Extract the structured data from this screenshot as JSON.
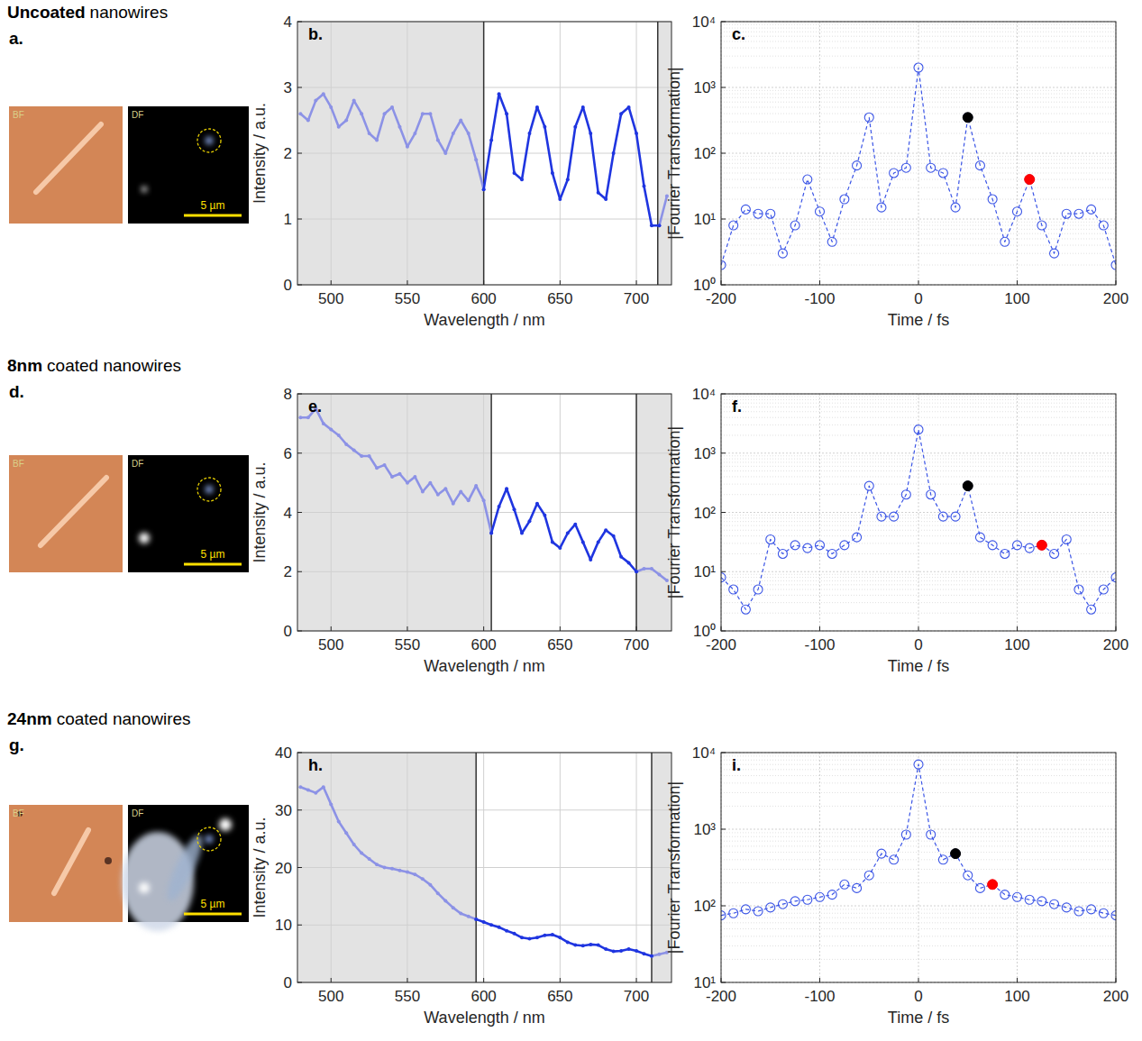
{
  "rows": [
    {
      "heading": [
        "Uncoated",
        "nanowires"
      ],
      "letter": "a.",
      "bf_label": "BF",
      "df_label": "DF",
      "scale_label": "5 µm"
    },
    {
      "heading": [
        "8nm",
        "coated nanowires"
      ],
      "letter": "d.",
      "bf_label": "BF",
      "df_label": "DF",
      "scale_label": "5 µm"
    },
    {
      "heading": [
        "24nm",
        "coated nanowires"
      ],
      "letter": "g.",
      "bf_label": "BF",
      "df_label": "DF",
      "scale_label": "5 µm"
    }
  ],
  "chart_data": [
    {
      "type": "line",
      "title": "b.",
      "x_label": "Wavelength / nm",
      "y_label": "Intensity / a.u.",
      "x": [
        480,
        485,
        490,
        495,
        500,
        505,
        510,
        515,
        520,
        525,
        530,
        535,
        540,
        545,
        550,
        555,
        560,
        565,
        570,
        575,
        580,
        585,
        590,
        595,
        600,
        605,
        610,
        615,
        620,
        625,
        630,
        635,
        640,
        645,
        650,
        655,
        660,
        665,
        670,
        675,
        680,
        685,
        690,
        695,
        700,
        705,
        710,
        715,
        720
      ],
      "xlim": [
        478,
        723
      ],
      "xticks": [
        500,
        550,
        600,
        650,
        700
      ],
      "ylim": [
        0,
        4
      ],
      "yticks": [
        0,
        1,
        2,
        3,
        4
      ],
      "grid": true,
      "window": [
        600,
        714
      ],
      "series": [
        {
          "color": "#8c92e6",
          "marker": "dot",
          "values": [
            2.6,
            2.5,
            2.8,
            2.9,
            2.7,
            2.4,
            2.5,
            2.8,
            2.6,
            2.3,
            2.2,
            2.6,
            2.7,
            2.4,
            2.1,
            2.3,
            2.6,
            2.6,
            2.2,
            2.0,
            2.3,
            2.5,
            2.3,
            1.9,
            1.45,
            null,
            null,
            null,
            null,
            null,
            null,
            null,
            null,
            null,
            null,
            null,
            null,
            null,
            null,
            null,
            null,
            null,
            null,
            null,
            null,
            null,
            null,
            0.9,
            1.35
          ]
        },
        {
          "color": "#1f35e0",
          "marker": "dot",
          "values": [
            null,
            null,
            null,
            null,
            null,
            null,
            null,
            null,
            null,
            null,
            null,
            null,
            null,
            null,
            null,
            null,
            null,
            null,
            null,
            null,
            null,
            null,
            null,
            null,
            1.45,
            2.2,
            2.9,
            2.6,
            1.7,
            1.6,
            2.3,
            2.7,
            2.4,
            1.7,
            1.3,
            1.6,
            2.4,
            2.7,
            2.3,
            1.4,
            1.3,
            2.0,
            2.6,
            2.7,
            2.3,
            1.5,
            0.9,
            0.9,
            null
          ]
        }
      ]
    },
    {
      "type": "line",
      "title": "c.",
      "x_label": "Time / fs",
      "y_label": "|Fourier Transformation|",
      "log": "y",
      "x": [
        -200,
        -187.5,
        -175,
        -162.5,
        -150,
        -137.5,
        -125,
        -112.5,
        -100,
        -87.5,
        -75,
        -62.5,
        -50,
        -37.5,
        -25,
        -12.5,
        0,
        12.5,
        25,
        37.5,
        50,
        62.5,
        75,
        87.5,
        100,
        112.5,
        125,
        137.5,
        150,
        162.5,
        175,
        187.5,
        200
      ],
      "xlim": [
        -200,
        200
      ],
      "xticks": [
        -200,
        -100,
        0,
        100,
        200
      ],
      "ylim": [
        1,
        10000
      ],
      "yticks": [
        {
          "value": 1,
          "label": "10⁰"
        },
        {
          "value": 10,
          "label": "10¹"
        },
        {
          "value": 100,
          "label": "10²"
        },
        {
          "value": 1000,
          "label": "10³"
        },
        {
          "value": 10000,
          "label": "10⁴"
        }
      ],
      "grid": true,
      "series": [
        {
          "color": "#3b55e6",
          "marker": "circle",
          "line_style": "dashed",
          "values": [
            2,
            8,
            14,
            12,
            12,
            3,
            8,
            40,
            13,
            4.5,
            20,
            65,
            350,
            15,
            50,
            60,
            2000,
            60,
            50,
            15,
            350,
            65,
            20,
            4.5,
            13,
            40,
            8,
            3,
            12,
            12,
            14,
            8,
            2
          ]
        },
        {
          "color": "#000000",
          "marker": "filled",
          "values": [
            null,
            null,
            null,
            null,
            null,
            null,
            null,
            null,
            null,
            null,
            null,
            null,
            null,
            null,
            null,
            null,
            null,
            null,
            null,
            null,
            350,
            null,
            null,
            null,
            null,
            null,
            null,
            null,
            null,
            null,
            null,
            null,
            null
          ]
        },
        {
          "color": "#ff0000",
          "marker": "filled",
          "values": [
            null,
            null,
            null,
            null,
            null,
            null,
            null,
            null,
            null,
            null,
            null,
            null,
            null,
            null,
            null,
            null,
            null,
            null,
            null,
            null,
            null,
            null,
            null,
            null,
            null,
            40,
            null,
            null,
            null,
            null,
            null,
            null,
            null
          ]
        }
      ]
    },
    {
      "type": "line",
      "title": "e.",
      "x_label": "Wavelength / nm",
      "y_label": "Intensity / a.u.",
      "x": [
        480,
        485,
        490,
        495,
        500,
        505,
        510,
        515,
        520,
        525,
        530,
        535,
        540,
        545,
        550,
        555,
        560,
        565,
        570,
        575,
        580,
        585,
        590,
        595,
        600,
        605,
        610,
        615,
        620,
        625,
        630,
        635,
        640,
        645,
        650,
        655,
        660,
        665,
        670,
        675,
        680,
        685,
        690,
        695,
        700,
        705,
        710,
        715,
        720
      ],
      "xlim": [
        478,
        723
      ],
      "xticks": [
        500,
        550,
        600,
        650,
        700
      ],
      "ylim": [
        0,
        8
      ],
      "yticks": [
        0,
        2,
        4,
        6,
        8
      ],
      "grid": true,
      "window": [
        605,
        700
      ],
      "series": [
        {
          "color": "#8c92e6",
          "marker": "dot",
          "values": [
            7.2,
            7.2,
            7.5,
            7.0,
            6.8,
            6.6,
            6.3,
            6.1,
            5.9,
            5.9,
            5.5,
            5.6,
            5.2,
            5.3,
            5.0,
            5.2,
            4.7,
            5.0,
            4.6,
            4.8,
            4.3,
            4.7,
            4.4,
            4.9,
            4.4,
            3.3,
            null,
            null,
            null,
            null,
            null,
            null,
            null,
            null,
            null,
            null,
            null,
            null,
            null,
            null,
            null,
            null,
            null,
            null,
            2.0,
            2.1,
            2.1,
            1.9,
            1.7
          ]
        },
        {
          "color": "#1f35e0",
          "marker": "dot",
          "values": [
            null,
            null,
            null,
            null,
            null,
            null,
            null,
            null,
            null,
            null,
            null,
            null,
            null,
            null,
            null,
            null,
            null,
            null,
            null,
            null,
            null,
            null,
            null,
            null,
            null,
            3.3,
            4.2,
            4.8,
            4.1,
            3.3,
            3.7,
            4.3,
            3.9,
            3.0,
            2.8,
            3.3,
            3.6,
            3.0,
            2.4,
            3.0,
            3.4,
            3.2,
            2.5,
            2.3,
            2.0,
            null,
            null,
            null,
            null
          ]
        }
      ]
    },
    {
      "type": "line",
      "title": "f.",
      "x_label": "Time / fs",
      "y_label": "|Fourier Transformation|",
      "log": "y",
      "x": [
        -200,
        -187.5,
        -175,
        -162.5,
        -150,
        -137.5,
        -125,
        -112.5,
        -100,
        -87.5,
        -75,
        -62.5,
        -50,
        -37.5,
        -25,
        -12.5,
        0,
        12.5,
        25,
        37.5,
        50,
        62.5,
        75,
        87.5,
        100,
        112.5,
        125,
        137.5,
        150,
        162.5,
        175,
        187.5,
        200
      ],
      "xlim": [
        -200,
        200
      ],
      "xticks": [
        -200,
        -100,
        0,
        100,
        200
      ],
      "ylim": [
        1,
        10000
      ],
      "yticks": [
        {
          "value": 1,
          "label": "10⁰"
        },
        {
          "value": 10,
          "label": "10¹"
        },
        {
          "value": 100,
          "label": "10²"
        },
        {
          "value": 1000,
          "label": "10³"
        },
        {
          "value": 10000,
          "label": "10⁴"
        }
      ],
      "grid": true,
      "series": [
        {
          "color": "#3b55e6",
          "marker": "circle",
          "line_style": "dashed",
          "values": [
            8,
            5,
            2.3,
            5,
            35,
            20,
            28,
            25,
            28,
            20,
            28,
            38,
            280,
            85,
            85,
            200,
            2500,
            200,
            85,
            85,
            280,
            38,
            28,
            20,
            28,
            25,
            28,
            20,
            35,
            5,
            2.3,
            5,
            8
          ]
        },
        {
          "color": "#000000",
          "marker": "filled",
          "values": [
            null,
            null,
            null,
            null,
            null,
            null,
            null,
            null,
            null,
            null,
            null,
            null,
            null,
            null,
            null,
            null,
            null,
            null,
            null,
            null,
            280,
            null,
            null,
            null,
            null,
            null,
            null,
            null,
            null,
            null,
            null,
            null,
            null
          ]
        },
        {
          "color": "#ff0000",
          "marker": "filled",
          "values": [
            null,
            null,
            null,
            null,
            null,
            null,
            null,
            null,
            null,
            null,
            null,
            null,
            null,
            null,
            null,
            null,
            null,
            null,
            null,
            null,
            null,
            null,
            null,
            null,
            null,
            null,
            28,
            null,
            null,
            null,
            null,
            null,
            null
          ]
        }
      ]
    },
    {
      "type": "line",
      "title": "h.",
      "x_label": "Wavelength / nm",
      "y_label": "Intensity / a.u.",
      "x": [
        480,
        485,
        490,
        495,
        500,
        505,
        510,
        515,
        520,
        525,
        530,
        535,
        540,
        545,
        550,
        555,
        560,
        565,
        570,
        575,
        580,
        585,
        590,
        595,
        600,
        605,
        610,
        615,
        620,
        625,
        630,
        635,
        640,
        645,
        650,
        655,
        660,
        665,
        670,
        675,
        680,
        685,
        690,
        695,
        700,
        705,
        710,
        715,
        720
      ],
      "xlim": [
        478,
        723
      ],
      "xticks": [
        500,
        550,
        600,
        650,
        700
      ],
      "ylim": [
        0,
        40
      ],
      "yticks": [
        0,
        10,
        20,
        30,
        40
      ],
      "grid": true,
      "window": [
        595,
        710
      ],
      "series": [
        {
          "color": "#8c92e6",
          "marker": "dot",
          "values": [
            34,
            33.5,
            33,
            34,
            31,
            28,
            26,
            24,
            22.5,
            21.5,
            20.5,
            20,
            19.8,
            19.5,
            19.2,
            18.8,
            18,
            17,
            15.5,
            14.2,
            13,
            12,
            11.5,
            11,
            null,
            null,
            null,
            null,
            null,
            null,
            null,
            null,
            null,
            null,
            null,
            null,
            null,
            null,
            null,
            null,
            null,
            null,
            null,
            null,
            null,
            null,
            4.6,
            4.9,
            5.2
          ]
        },
        {
          "color": "#1f35e0",
          "marker": "dot",
          "values": [
            null,
            null,
            null,
            null,
            null,
            null,
            null,
            null,
            null,
            null,
            null,
            null,
            null,
            null,
            null,
            null,
            null,
            null,
            null,
            null,
            null,
            null,
            null,
            11,
            10.5,
            10,
            9.6,
            9,
            8.5,
            7.8,
            7.6,
            7.8,
            8.2,
            8.3,
            7.8,
            7.0,
            6.5,
            6.4,
            6.6,
            6.5,
            5.8,
            5.4,
            5.5,
            5.8,
            5.5,
            5.0,
            4.6,
            null,
            null
          ]
        }
      ]
    },
    {
      "type": "line",
      "title": "i.",
      "x_label": "Time / fs",
      "y_label": "|Fourier Transformation|",
      "log": "y",
      "x": [
        -200,
        -187.5,
        -175,
        -162.5,
        -150,
        -137.5,
        -125,
        -112.5,
        -100,
        -87.5,
        -75,
        -62.5,
        -50,
        -37.5,
        -25,
        -12.5,
        0,
        12.5,
        25,
        37.5,
        50,
        62.5,
        75,
        87.5,
        100,
        112.5,
        125,
        137.5,
        150,
        162.5,
        175,
        187.5,
        200
      ],
      "xlim": [
        -200,
        200
      ],
      "xticks": [
        -200,
        -100,
        0,
        100,
        200
      ],
      "ylim": [
        10,
        10000
      ],
      "yticks": [
        {
          "value": 10,
          "label": "10¹"
        },
        {
          "value": 100,
          "label": "10²"
        },
        {
          "value": 1000,
          "label": "10³"
        },
        {
          "value": 10000,
          "label": "10⁴"
        }
      ],
      "grid": true,
      "series": [
        {
          "color": "#3b55e6",
          "marker": "circle",
          "line_style": "dashed",
          "values": [
            75,
            80,
            90,
            85,
            95,
            105,
            115,
            120,
            130,
            140,
            190,
            170,
            250,
            480,
            400,
            850,
            7000,
            850,
            400,
            480,
            250,
            170,
            190,
            140,
            130,
            120,
            115,
            105,
            95,
            85,
            90,
            80,
            75
          ]
        },
        {
          "color": "#000000",
          "marker": "filled",
          "values": [
            null,
            null,
            null,
            null,
            null,
            null,
            null,
            null,
            null,
            null,
            null,
            null,
            null,
            null,
            null,
            null,
            null,
            null,
            null,
            480,
            null,
            null,
            null,
            null,
            null,
            null,
            null,
            null,
            null,
            null,
            null,
            null,
            null
          ]
        },
        {
          "color": "#ff0000",
          "marker": "filled",
          "values": [
            null,
            null,
            null,
            null,
            null,
            null,
            null,
            null,
            null,
            null,
            null,
            null,
            null,
            null,
            null,
            null,
            null,
            null,
            null,
            null,
            null,
            null,
            190,
            null,
            null,
            null,
            null,
            null,
            null,
            null,
            null,
            null,
            null
          ]
        }
      ]
    }
  ]
}
